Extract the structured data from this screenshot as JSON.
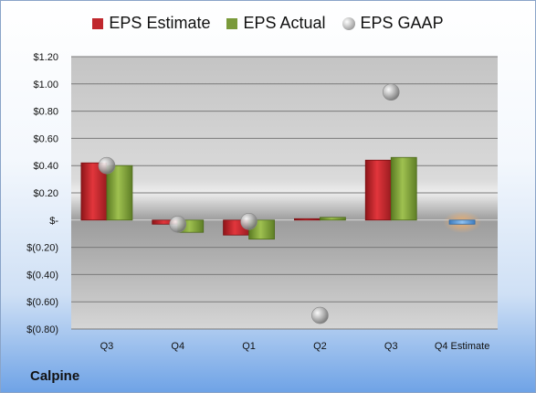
{
  "company": "Calpine",
  "chart_data": {
    "type": "bar",
    "categories": [
      "Q3",
      "Q4",
      "Q1",
      "Q2",
      "Q3",
      "Q4 Estimate"
    ],
    "series": [
      {
        "name": "EPS Estimate",
        "values": [
          0.42,
          -0.03,
          -0.11,
          0.01,
          0.44,
          null
        ],
        "color": "#c0272d"
      },
      {
        "name": "EPS Actual",
        "values": [
          0.4,
          -0.09,
          -0.14,
          0.02,
          0.46,
          null
        ],
        "color": "#7a9a3a"
      },
      {
        "name": "EPS GAAP",
        "values": [
          0.4,
          -0.03,
          -0.01,
          -0.7,
          0.94,
          null
        ],
        "color": "#9a9a9a"
      }
    ],
    "future_estimate": {
      "category": "Q4 Estimate",
      "value": -0.03,
      "color": "#5b9bd5"
    },
    "y_ticks": [
      {
        "value": 1.2,
        "label": "$1.20"
      },
      {
        "value": 1.0,
        "label": "$1.00"
      },
      {
        "value": 0.8,
        "label": "$0.80"
      },
      {
        "value": 0.6,
        "label": "$0.60"
      },
      {
        "value": 0.4,
        "label": "$0.40"
      },
      {
        "value": 0.2,
        "label": "$0.20"
      },
      {
        "value": 0.0,
        "label": "$-"
      },
      {
        "value": -0.2,
        "label": "$(0.20)"
      },
      {
        "value": -0.4,
        "label": "$(0.40)"
      },
      {
        "value": -0.6,
        "label": "$(0.60)"
      },
      {
        "value": -0.8,
        "label": "$(0.80)"
      }
    ],
    "ylim": [
      -0.8,
      1.2
    ],
    "grid": true,
    "legend_position": "top"
  }
}
